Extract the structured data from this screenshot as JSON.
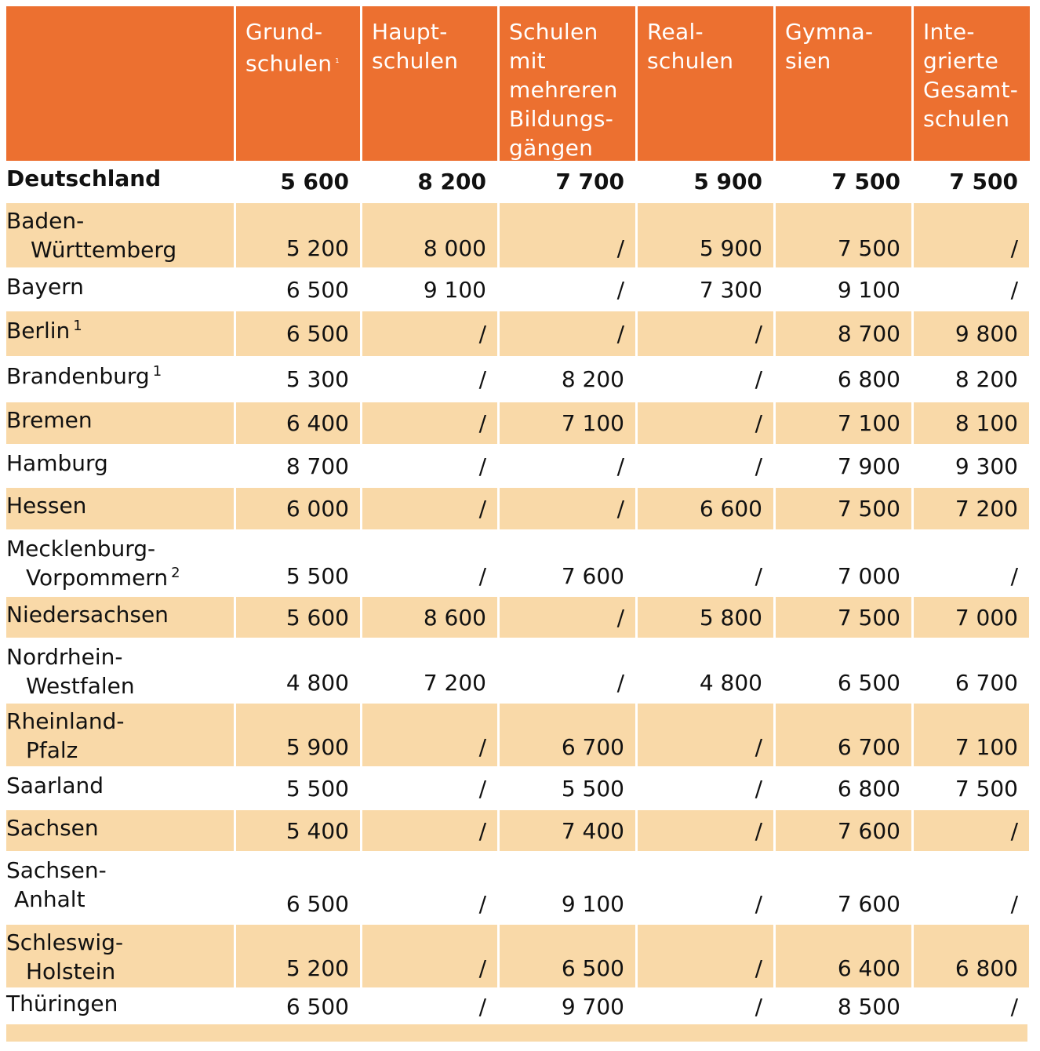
{
  "headers": [
    {
      "lines": [
        "Grund-",
        "schulen"
      ],
      "sup": "1"
    },
    {
      "lines": [
        "Haupt-",
        "schulen"
      ],
      "sup": ""
    },
    {
      "lines": [
        "Schulen",
        "mit",
        "mehreren",
        "Bildungs-",
        "gängen"
      ],
      "sup": ""
    },
    {
      "lines": [
        "Real-",
        "schulen"
      ],
      "sup": ""
    },
    {
      "lines": [
        "Gymna-",
        "sien"
      ],
      "sup": ""
    },
    {
      "lines": [
        "Inte-",
        "grierte",
        "Gesamt-",
        "schulen"
      ],
      "sup": ""
    }
  ],
  "rows": [
    {
      "name": [
        "Deutschland"
      ],
      "sup": "",
      "values": [
        "5 600",
        "8 200",
        "7 700",
        "5 900",
        "7 500",
        "7 500"
      ],
      "bold": true
    },
    {
      "name": [
        "Baden-",
        "Württemberg"
      ],
      "sup": "",
      "values": [
        "5 200",
        "8 000",
        "/",
        "5 900",
        "7 500",
        "/"
      ]
    },
    {
      "name": [
        "Bayern"
      ],
      "sup": "",
      "values": [
        "6 500",
        "9 100",
        "/",
        "7 300",
        "9 100",
        "/"
      ]
    },
    {
      "name": [
        "Berlin"
      ],
      "sup": "1",
      "values": [
        "6 500",
        "/",
        "/",
        "/",
        "8 700",
        "9 800"
      ]
    },
    {
      "name": [
        "Brandenburg"
      ],
      "sup": "1",
      "values": [
        "5 300",
        "/",
        "8 200",
        "/",
        "6 800",
        "8 200"
      ]
    },
    {
      "name": [
        "Bremen"
      ],
      "sup": "",
      "values": [
        "6 400",
        "/",
        "7 100",
        "/",
        "7 100",
        "8 100"
      ]
    },
    {
      "name": [
        "Hamburg"
      ],
      "sup": "",
      "values": [
        "8 700",
        "/",
        "/",
        "/",
        "7 900",
        "9 300"
      ]
    },
    {
      "name": [
        "Hessen"
      ],
      "sup": "",
      "values": [
        "6 000",
        "/",
        "/",
        "6 600",
        "7 500",
        "7 200"
      ]
    },
    {
      "name": [
        "Mecklenburg-",
        "Vorpommern"
      ],
      "sup": "2",
      "values": [
        "5 500",
        "/",
        "7 600",
        "/",
        "7 000",
        "/"
      ]
    },
    {
      "name": [
        "Niedersachsen"
      ],
      "sup": "",
      "values": [
        "5 600",
        "8 600",
        "/",
        "5 800",
        "7 500",
        "7 000"
      ]
    },
    {
      "name": [
        "Nordrhein-",
        "Westfalen"
      ],
      "sup": "",
      "values": [
        "4 800",
        "7 200",
        "/",
        "4 800",
        "6 500",
        "6 700"
      ]
    },
    {
      "name": [
        "Rheinland-",
        "Pfalz"
      ],
      "sup": "",
      "values": [
        "5 900",
        "/",
        "6 700",
        "/",
        "6 700",
        "7 100"
      ]
    },
    {
      "name": [
        "Saarland"
      ],
      "sup": "",
      "values": [
        "5 500",
        "/",
        "5 500",
        "/",
        "6 800",
        "7 500"
      ]
    },
    {
      "name": [
        "Sachsen"
      ],
      "sup": "",
      "values": [
        "5 400",
        "/",
        "7 400",
        "/",
        "7 600",
        "/"
      ]
    },
    {
      "name": [
        "Sachsen-",
        "Anhalt"
      ],
      "sup": "",
      "values": [
        "6 500",
        "/",
        "9 100",
        "/",
        "7 600",
        "/"
      ]
    },
    {
      "name": [
        "Schleswig-",
        "Holstein"
      ],
      "sup": "",
      "values": [
        "5 200",
        "/",
        "6 500",
        "/",
        "6 400",
        "6 800"
      ]
    },
    {
      "name": [
        "Thüringen"
      ],
      "sup": "",
      "values": [
        "6 500",
        "/",
        "9 700",
        "/",
        "8 500",
        "/"
      ]
    }
  ],
  "colors": {
    "header_bg": "#ec7030",
    "band_bg": "#f9d9a8",
    "header_text": "#ffffff"
  }
}
